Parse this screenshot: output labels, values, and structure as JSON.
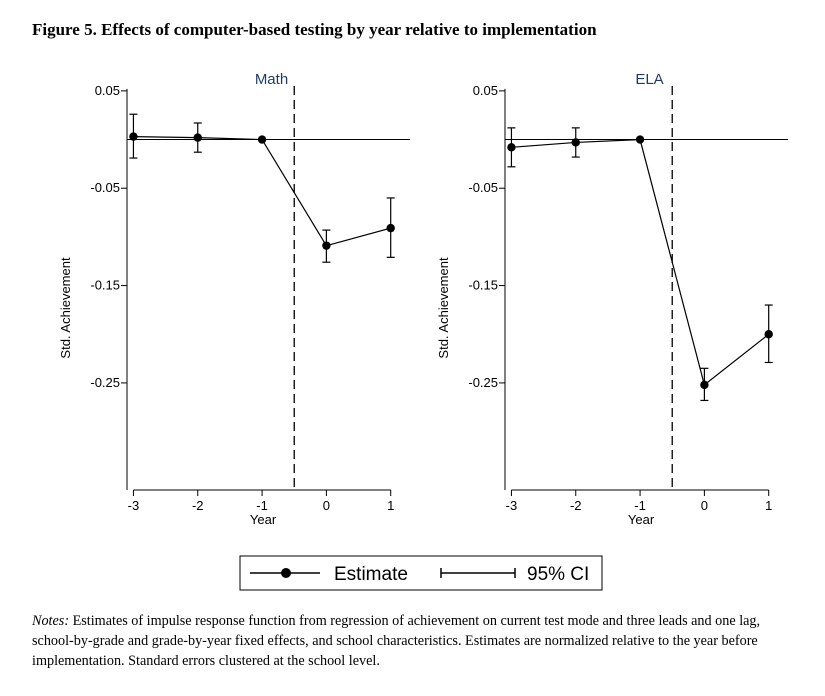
{
  "figure": {
    "title": "Figure 5. Effects of computer-based testing by year relative to implementation"
  },
  "chart_data": [
    {
      "type": "line",
      "panel": "Math",
      "title": "Math",
      "xlabel": "Year",
      "ylabel": "Std. Achievement",
      "x": [
        -3,
        -2,
        -1,
        0,
        1
      ],
      "xticks": [
        "-3",
        "-2",
        "-1",
        "0",
        "1"
      ],
      "yticks": [
        0.05,
        -0.05,
        -0.15,
        -0.25
      ],
      "ytick_labels": [
        "0.05",
        "-0.05",
        "-0.15",
        "-0.25"
      ],
      "ylim": [
        -0.36,
        0.055
      ],
      "xlim": [
        -3.1,
        1.3
      ],
      "series": [
        {
          "name": "Estimate",
          "values": [
            0.003,
            0.002,
            0.0,
            -0.109,
            -0.091
          ],
          "ci_low": [
            -0.019,
            -0.013,
            0.0,
            -0.126,
            -0.121
          ],
          "ci_high": [
            0.026,
            0.017,
            0.0,
            -0.093,
            -0.06
          ]
        }
      ],
      "reference_lines": {
        "horizontal_y": 0,
        "vertical_dashed_x": -0.5
      }
    },
    {
      "type": "line",
      "panel": "ELA",
      "title": "ELA",
      "xlabel": "Year",
      "ylabel": "Std. Achievement",
      "x": [
        -3,
        -2,
        -1,
        0,
        1
      ],
      "xticks": [
        "-3",
        "-2",
        "-1",
        "0",
        "1"
      ],
      "yticks": [
        0.05,
        -0.05,
        -0.15,
        -0.25
      ],
      "ytick_labels": [
        "0.05",
        "-0.05",
        "-0.15",
        "-0.25"
      ],
      "ylim": [
        -0.36,
        0.055
      ],
      "xlim": [
        -3.1,
        1.3
      ],
      "series": [
        {
          "name": "Estimate",
          "values": [
            -0.008,
            -0.003,
            0.0,
            -0.252,
            -0.2
          ],
          "ci_low": [
            -0.028,
            -0.018,
            0.0,
            -0.268,
            -0.229
          ],
          "ci_high": [
            0.012,
            0.012,
            0.0,
            -0.235,
            -0.17
          ]
        }
      ],
      "reference_lines": {
        "horizontal_y": 0,
        "vertical_dashed_x": -0.5
      }
    }
  ],
  "legend": {
    "estimate_label": "Estimate",
    "ci_label": "95% CI"
  },
  "notes": {
    "lead": "Notes:",
    "text": " Estimates of impulse response function from regression of achievement on current test mode and three leads and one lag, school-by-grade and grade-by-year fixed effects, and school characteristics. Estimates are normalized relative to the year before implementation. Standard errors clustered at the school level."
  }
}
